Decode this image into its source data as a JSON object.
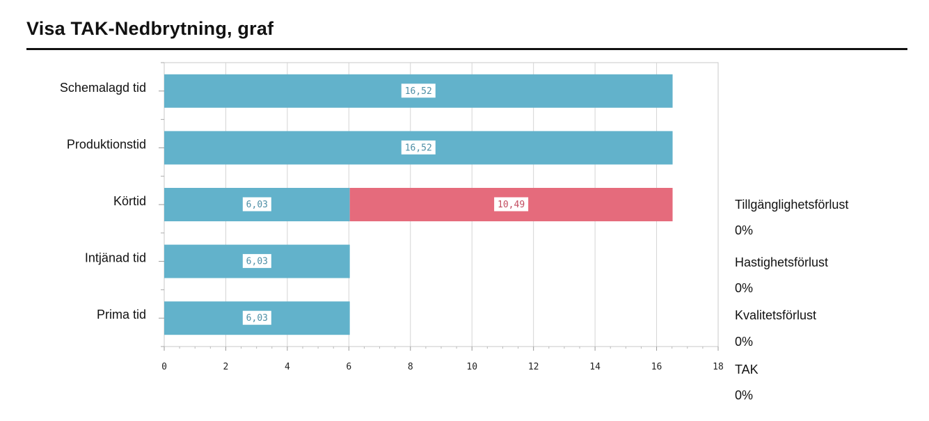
{
  "page": {
    "title": "Visa TAK-Nedbrytning, graf"
  },
  "chart_data": {
    "type": "bar",
    "orientation": "horizontal",
    "stacked": true,
    "categories": [
      "Schemalagd tid",
      "Produktionstid",
      "Körtid",
      "Intjänad tid",
      "Prima tid"
    ],
    "series": [
      {
        "values": [
          16.52,
          16.52,
          6.03,
          6.03,
          6.03
        ],
        "labels": [
          "16,52",
          "16,52",
          "6,03",
          "6,03",
          "6,03"
        ],
        "color": "#62b2cb"
      },
      {
        "values": [
          0,
          0,
          10.49,
          0,
          0
        ],
        "labels": [
          "",
          "",
          "10,49",
          "",
          ""
        ],
        "color": "#e56b7c"
      }
    ],
    "xlim": [
      0,
      18
    ],
    "x_ticks": [
      "0",
      "2",
      "4",
      "6",
      "8",
      "10",
      "12",
      "14",
      "16",
      "18"
    ],
    "grid": true,
    "xlabel": "",
    "ylabel": ""
  },
  "metrics": [
    {
      "name": "Tillgänglighetsförlust",
      "value": "0%"
    },
    {
      "name": "Hastighetsförlust",
      "value": "0%"
    },
    {
      "name": "Kvalitetsförlust",
      "value": "0%"
    },
    {
      "name": "TAK",
      "value": "0%"
    }
  ]
}
